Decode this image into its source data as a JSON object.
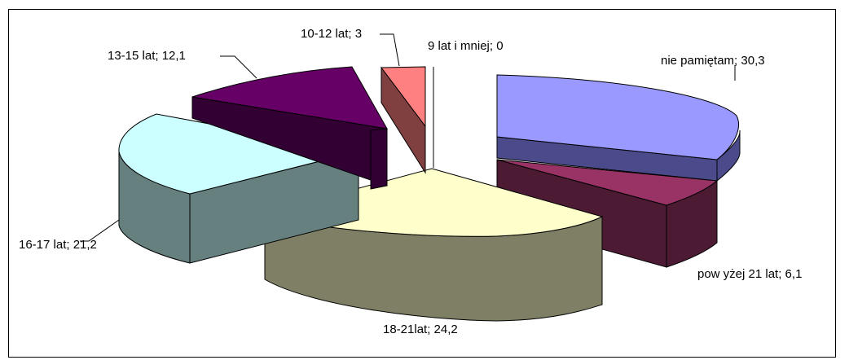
{
  "chart_data": {
    "type": "pie",
    "title": "",
    "legend": "none",
    "slices": [
      {
        "label": "nie pamiętam; 30,3",
        "value": 30.3,
        "top_color": "#9999ff",
        "side_color": "#4b4b8c"
      },
      {
        "label": "pow yżej 21 lat; 6,1",
        "value": 6.1,
        "top_color": "#993366",
        "side_color": "#4d1a33"
      },
      {
        "label": "18-21lat; 24,2",
        "value": 24.2,
        "top_color": "#ffffcc",
        "side_color": "#7f7f66"
      },
      {
        "label": "16-17 lat; 21,2",
        "value": 21.2,
        "top_color": "#ccffff",
        "side_color": "#668080"
      },
      {
        "label": "13-15 lat; 12,1",
        "value": 12.1,
        "top_color": "#660066",
        "side_color": "#330033"
      },
      {
        "label": "10-12 lat; 3",
        "value": 3.0,
        "top_color": "#ff8080",
        "side_color": "#804040"
      },
      {
        "label": "9 lat i mniej; 0",
        "value": 0.0,
        "top_color": "#ffffff",
        "side_color": "#ffffff"
      }
    ]
  }
}
